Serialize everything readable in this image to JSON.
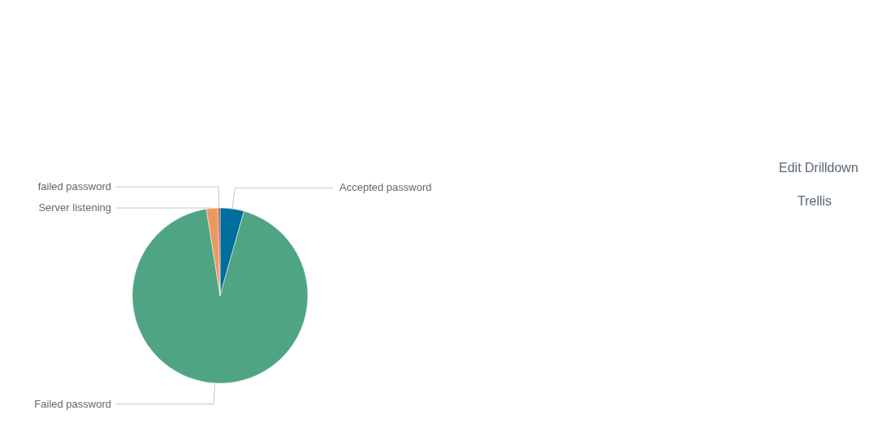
{
  "chart_data": {
    "type": "pie",
    "categories": [
      "Accepted password",
      "Failed password",
      "Server listening",
      "failed password"
    ],
    "values": [
      4.4,
      93.1,
      2.1,
      0.4
    ],
    "colors": [
      "#006d9c",
      "#4fa484",
      "#ec9960",
      "#af575a"
    ],
    "annotations": [
      "Edit Drilldown",
      "Trellis"
    ]
  }
}
